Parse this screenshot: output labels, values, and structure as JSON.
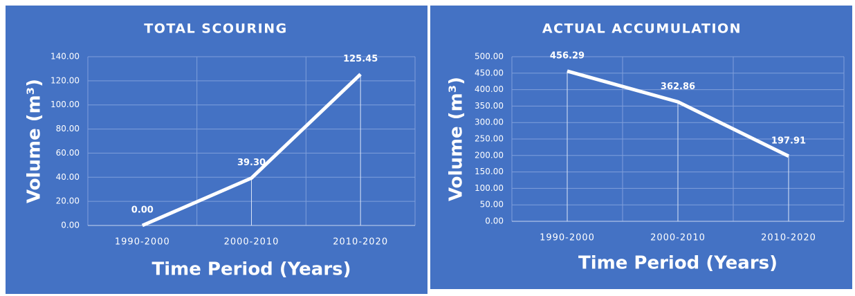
{
  "chart_data": [
    {
      "type": "line",
      "title": "TOTAL SCOURING",
      "x_label": "Time Period (Years)",
      "y_label": "Volume (m³)",
      "categories": [
        "1990-2000",
        "2000-2010",
        "2010-2020"
      ],
      "values": [
        0,
        39.3,
        125.45
      ],
      "value_labels": [
        "0.00",
        "39.30",
        "125.45"
      ],
      "color": "#ffffff",
      "ylim": [
        0,
        140
      ],
      "yticks": [
        {
          "value": 0,
          "label": "0.00"
        },
        {
          "value": 20,
          "label": "20.00"
        },
        {
          "value": 40,
          "label": "40.00"
        },
        {
          "value": 60,
          "label": "60.00"
        },
        {
          "value": 80,
          "label": "80.00"
        },
        {
          "value": 100,
          "label": "100.00"
        },
        {
          "value": 120,
          "label": "120.00"
        },
        {
          "value": 140,
          "label": "140.00"
        }
      ],
      "grid": true
    },
    {
      "type": "line",
      "title": "ACTUAL ACCUMULATION",
      "x_label": "Time Period (Years)",
      "y_label": "Volume (m³)",
      "categories": [
        "1990-2000",
        "2000-2010",
        "2010-2020"
      ],
      "values": [
        456.29,
        362.86,
        197.91
      ],
      "value_labels": [
        "456.29",
        "362.86",
        "197.91"
      ],
      "color": "#ffffff",
      "ylim": [
        0,
        500
      ],
      "yticks": [
        {
          "value": 0,
          "label": "0.00"
        },
        {
          "value": 50,
          "label": "50.00"
        },
        {
          "value": 100,
          "label": "100.00"
        },
        {
          "value": 150,
          "label": "150.00"
        },
        {
          "value": 200,
          "label": "200.00"
        },
        {
          "value": 250,
          "label": "250.00"
        },
        {
          "value": 300,
          "label": "300.00"
        },
        {
          "value": 350,
          "label": "350.00"
        },
        {
          "value": 400,
          "label": "400.00"
        },
        {
          "value": 450,
          "label": "450.00"
        },
        {
          "value": 500,
          "label": "500.00"
        }
      ],
      "grid": true
    }
  ]
}
